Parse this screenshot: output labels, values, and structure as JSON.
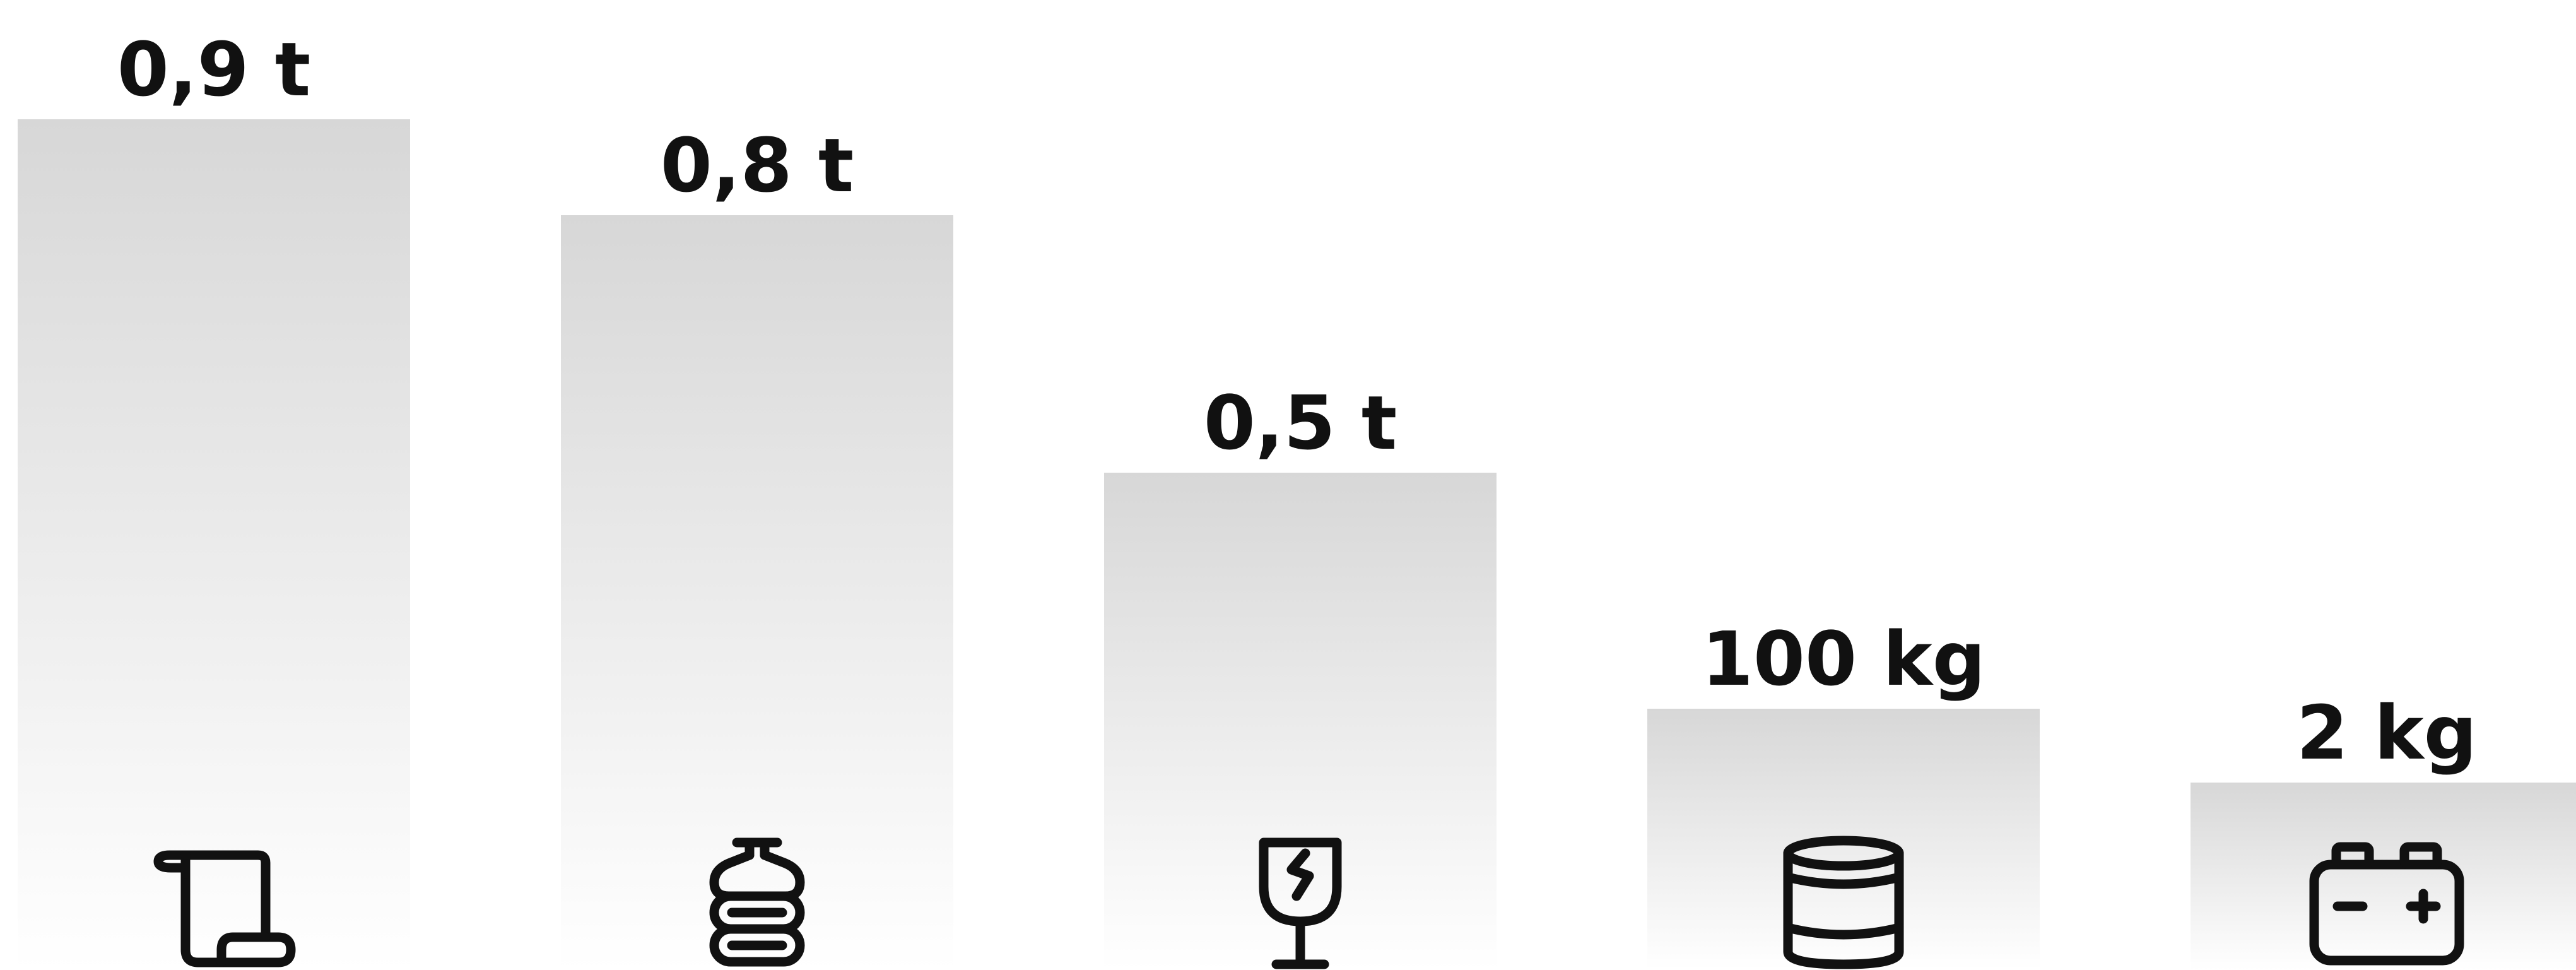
{
  "chart_data": {
    "type": "bar",
    "categories": [
      "paper",
      "plastic",
      "glass",
      "metal",
      "batteries"
    ],
    "values_kg": [
      900,
      800,
      500,
      100,
      2
    ],
    "value_labels": [
      "0,9 t",
      "0,8 t",
      "0,5 t",
      "100 kg",
      "2 kg"
    ],
    "icons": [
      "paper-scroll-icon",
      "plastic-bottle-icon",
      "glass-icon",
      "metal-can-icon",
      "battery-icon"
    ],
    "title": "",
    "xlabel": "",
    "ylabel": "",
    "ylim": [
      0,
      1000
    ],
    "grid": false,
    "legend": "none",
    "bar_gradient": [
      "#d7d7d7",
      "#ffffff"
    ],
    "label_color": "#111111"
  }
}
